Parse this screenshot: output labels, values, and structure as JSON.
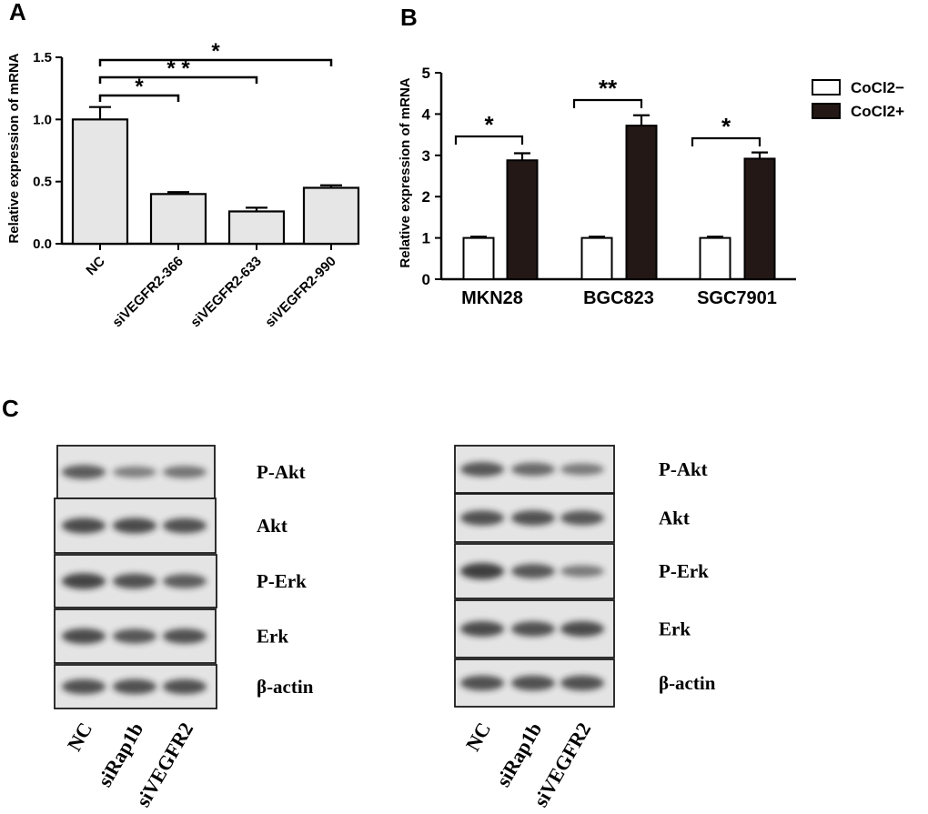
{
  "panels": {
    "A": {
      "letter": "A"
    },
    "B": {
      "letter": "B"
    },
    "C": {
      "letter": "C"
    }
  },
  "chart_data": [
    {
      "panel": "A",
      "type": "bar",
      "ylabel": "Relative expression of mRNA",
      "xlabel": "",
      "categories": [
        "NC",
        "siVEGFR2-366",
        "siVEGFR2-633",
        "siVEGFR2-990"
      ],
      "series": [
        {
          "values": [
            1.0,
            0.4,
            0.26,
            0.45
          ],
          "errors": [
            0.1,
            0.015,
            0.03,
            0.02
          ],
          "color": "#e6e6e6"
        }
      ],
      "ylim": [
        0,
        1.5
      ],
      "yticks": [
        "0.0",
        "0.5",
        "1.0",
        "1.5"
      ],
      "grid": false,
      "significance": [
        {
          "from": "NC",
          "to": "siVEGFR2-366",
          "label": "*"
        },
        {
          "from": "NC",
          "to": "siVEGFR2-633",
          "label": "* *"
        },
        {
          "from": "NC",
          "to": "siVEGFR2-990",
          "label": "*"
        }
      ]
    },
    {
      "panel": "B",
      "type": "bar",
      "ylabel": "Relative expression of mRNA",
      "xlabel": "",
      "categories": [
        "MKN28",
        "BGC823",
        "SGC7901"
      ],
      "series": [
        {
          "name": "CoCl2−",
          "values": [
            1.0,
            1.0,
            1.0
          ],
          "errors": [
            0.03,
            0.03,
            0.03
          ],
          "color": "#ffffff"
        },
        {
          "name": "CoCl2+",
          "values": [
            2.88,
            3.72,
            2.92
          ],
          "errors": [
            0.17,
            0.25,
            0.15
          ],
          "color": "#231815"
        }
      ],
      "ylim": [
        0,
        5
      ],
      "yticks": [
        "0",
        "1",
        "2",
        "3",
        "4",
        "5"
      ],
      "grid": false,
      "legend_position": "right",
      "significance": [
        {
          "category": "MKN28",
          "label": "*"
        },
        {
          "category": "BGC823",
          "label": "**"
        },
        {
          "category": "SGC7901",
          "label": "*"
        }
      ]
    }
  ],
  "blots": {
    "left": {
      "proteins": [
        "P-Akt",
        "Akt",
        "P-Erk",
        "Erk",
        "β-actin"
      ],
      "lanes": [
        "NC",
        "siRap1b",
        "siVEGFR2"
      ]
    },
    "right": {
      "proteins": [
        "P-Akt",
        "Akt",
        "P-Erk",
        "Erk",
        "β-actin"
      ],
      "lanes": [
        "NC",
        "siRap1b",
        "siVEGFR2"
      ]
    }
  }
}
